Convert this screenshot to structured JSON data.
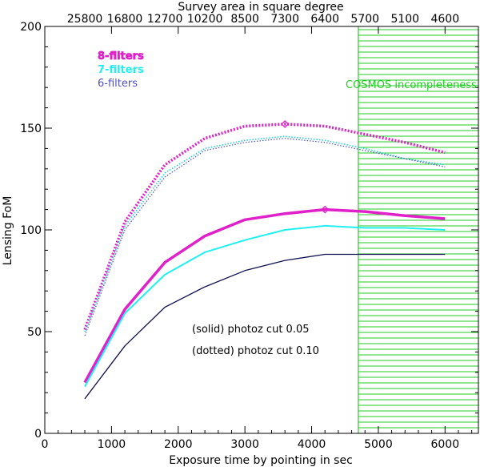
{
  "chart_data": {
    "type": "line",
    "xlabel": "Exposure time by pointing in sec",
    "ylabel": "Lensing FoM",
    "top_axis_title": "Survey area in square degree",
    "xlim": [
      0,
      6500
    ],
    "ylim": [
      0,
      200
    ],
    "x_ticks": [
      0,
      1000,
      2000,
      3000,
      4000,
      5000,
      6000
    ],
    "y_ticks": [
      0,
      50,
      100,
      150,
      200
    ],
    "top_ticks": [
      {
        "x": 600,
        "label": "25800"
      },
      {
        "x": 1200,
        "label": "16800"
      },
      {
        "x": 1800,
        "label": "12700"
      },
      {
        "x": 2400,
        "label": "10200"
      },
      {
        "x": 3000,
        "label": "8500"
      },
      {
        "x": 3600,
        "label": "7300"
      },
      {
        "x": 4200,
        "label": "6400"
      },
      {
        "x": 4800,
        "label": "5700"
      },
      {
        "x": 5400,
        "label": "5100"
      },
      {
        "x": 6000,
        "label": "4600"
      }
    ],
    "x": [
      600,
      1200,
      1800,
      2400,
      3000,
      3600,
      4200,
      4800,
      5400,
      6000
    ],
    "series": [
      {
        "name": "8-filters solid",
        "filters": 8,
        "cut": 0.05,
        "style": "solid",
        "color": "#e020c8",
        "width": 3.5,
        "values": [
          25,
          61,
          84,
          97,
          105,
          108,
          110,
          109,
          107,
          105.5
        ]
      },
      {
        "name": "7-filters solid",
        "filters": 7,
        "cut": 0.05,
        "style": "solid",
        "color": "#20f0f0",
        "width": 2,
        "values": [
          23,
          59,
          78,
          89,
          95,
          100,
          102,
          101,
          101,
          100
        ]
      },
      {
        "name": "6-filters solid",
        "filters": 6,
        "cut": 0.05,
        "style": "solid",
        "color": "#101050",
        "width": 1.3,
        "values": [
          17,
          43,
          62,
          72,
          80,
          85,
          88,
          88,
          88,
          88
        ]
      },
      {
        "name": "8-filters dotted",
        "filters": 8,
        "cut": 0.1,
        "style": "dotted",
        "color": "#e020c8",
        "width": 3.5,
        "values": [
          51,
          104,
          132,
          145,
          151,
          152,
          151,
          147,
          143,
          138
        ]
      },
      {
        "name": "7-filters dotted",
        "filters": 7,
        "cut": 0.1,
        "style": "dotted",
        "color": "#20d0d8",
        "width": 1.6,
        "values": [
          50,
          102,
          128,
          140,
          144,
          146,
          144,
          140,
          135,
          132
        ]
      },
      {
        "name": "6-filters dotted",
        "filters": 6,
        "cut": 0.1,
        "style": "dotted",
        "color": "#5050c0",
        "width": 1.2,
        "values": [
          48,
          100,
          126,
          139,
          143,
          145,
          143,
          139,
          135,
          131
        ]
      }
    ],
    "markers": [
      {
        "x": 3600,
        "y": 152,
        "color": "#e020c8"
      },
      {
        "x": 4200,
        "y": 110,
        "color": "#e020c8"
      }
    ],
    "legend": [
      {
        "label": "8-filters",
        "color": "#e020c8"
      },
      {
        "label": "7-filters",
        "color": "#20f0f0"
      },
      {
        "label": "6-filters",
        "color": "#5050c0"
      }
    ],
    "shaded_region": {
      "x_start": 4700,
      "x_end": 6500,
      "color": "#22cc22",
      "label": "COSMOS incompleteness"
    },
    "annotations": [
      "(solid) photoz cut 0.05",
      "(dotted) photoz cut 0.10"
    ]
  }
}
